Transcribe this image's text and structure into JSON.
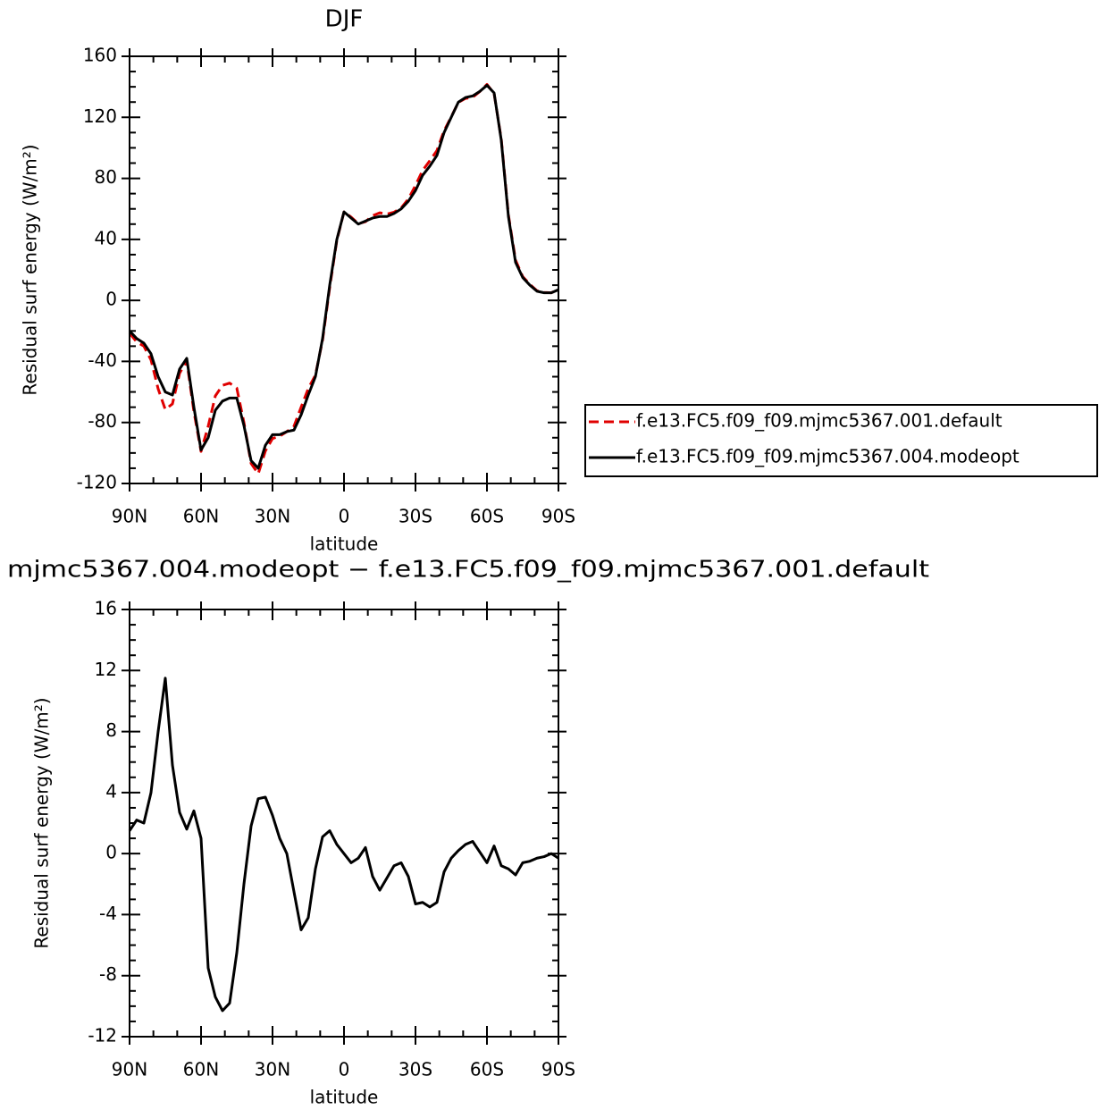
{
  "chart_data": [
    {
      "type": "line",
      "title": "DJF",
      "xlabel": "latitude",
      "ylabel": "Residual surf energy (W/m²)",
      "x": [
        90,
        87,
        84,
        81,
        78,
        75,
        72,
        69,
        66,
        63,
        60,
        57,
        54,
        51,
        48,
        45,
        42,
        39,
        36,
        33,
        30,
        27,
        24,
        21,
        18,
        15,
        12,
        9,
        6,
        3,
        0,
        -3,
        -6,
        -9,
        -12,
        -15,
        -18,
        -21,
        -24,
        -27,
        -30,
        -33,
        -36,
        -39,
        -42,
        -45,
        -48,
        -51,
        -54,
        -57,
        -60,
        -63,
        -66,
        -69,
        -72,
        -75,
        -78,
        -81,
        -84,
        -87,
        -90
      ],
      "series": [
        {
          "name": "f.e13.FC5.f09_f09.mjmc5367.001.default",
          "color": "#e00000",
          "line_style": "dashed",
          "values": [
            -21.5,
            -27.2,
            -30,
            -39,
            -58,
            -71.5,
            -67.8,
            -47.7,
            -39.6,
            -72.8,
            -99,
            -82.5,
            -62.6,
            -55.7,
            -54.2,
            -57.5,
            -80,
            -106.8,
            -113.6,
            -98.7,
            -90.5,
            -89,
            -86,
            -82.5,
            -70,
            -57.8,
            -49,
            -26.1,
            8.5,
            39.4,
            58,
            54.6,
            50.3,
            51.6,
            55.5,
            57.4,
            56.6,
            57.8,
            60.6,
            66.5,
            75.3,
            85.2,
            91.5,
            98.2,
            111.2,
            120.3,
            129.8,
            132.4,
            133.2,
            136.9,
            141.6,
            135.5,
            105.8,
            56,
            26.4,
            15.6,
            10.5,
            6.3,
            5.2,
            5,
            7.3
          ]
        },
        {
          "name": "f.e13.FC5.f09_f09.mjmc5367.004.modeopt",
          "color": "#000000",
          "line_style": "solid",
          "values": [
            -20,
            -25,
            -28,
            -35,
            -50,
            -60,
            -62,
            -45,
            -38,
            -70,
            -98,
            -90,
            -72,
            -66,
            -64,
            -64,
            -82,
            -105,
            -110,
            -95,
            -88,
            -88,
            -86,
            -85,
            -75,
            -62,
            -50,
            -25,
            10,
            40,
            58,
            54,
            50,
            52,
            54,
            55,
            55,
            57,
            60,
            65,
            72,
            82,
            88,
            95,
            110,
            120,
            130,
            133,
            134,
            137,
            141,
            136,
            105,
            55,
            25,
            15,
            10,
            6,
            5,
            5,
            7
          ]
        }
      ],
      "xlim": [
        90,
        -90
      ],
      "xticks": [
        {
          "value": 90,
          "label": "90N"
        },
        {
          "value": 60,
          "label": "60N"
        },
        {
          "value": 30,
          "label": "30N"
        },
        0,
        {
          "value": -30,
          "label": "30S"
        },
        {
          "value": -60,
          "label": "60S"
        },
        {
          "value": -90,
          "label": "90S"
        }
      ],
      "ylim": [
        -120,
        160
      ],
      "yticks": [
        -120,
        -80,
        -40,
        0,
        40,
        80,
        120,
        160
      ],
      "legend": "right"
    },
    {
      "type": "line",
      "title": "mjmc5367.004.modeopt − f.e13.FC5.f09_f09.mjmc5367.001.default",
      "xlabel": "latitude",
      "ylabel": "Residual surf energy (W/m²)",
      "x": [
        90,
        87,
        84,
        81,
        78,
        75,
        72,
        69,
        66,
        63,
        60,
        57,
        54,
        51,
        48,
        45,
        42,
        39,
        36,
        33,
        30,
        27,
        24,
        21,
        18,
        15,
        12,
        9,
        6,
        3,
        0,
        -3,
        -6,
        -9,
        -12,
        -15,
        -18,
        -21,
        -24,
        -27,
        -30,
        -33,
        -36,
        -39,
        -42,
        -45,
        -48,
        -51,
        -54,
        -57,
        -60,
        -63,
        -66,
        -69,
        -72,
        -75,
        -78,
        -81,
        -84,
        -87,
        -90
      ],
      "color": "#000000",
      "values": [
        1.5,
        2.2,
        2,
        4,
        8,
        11.5,
        5.8,
        2.7,
        1.6,
        2.8,
        1,
        -7.5,
        -9.4,
        -10.3,
        -9.8,
        -6.5,
        -2,
        1.8,
        3.6,
        3.7,
        2.5,
        1,
        0,
        -2.5,
        -5,
        -4.2,
        -1,
        1.1,
        1.5,
        0.6,
        0,
        -0.6,
        -0.3,
        0.4,
        -1.5,
        -2.4,
        -1.6,
        -0.8,
        -0.6,
        -1.5,
        -3.3,
        -3.2,
        -3.5,
        -3.2,
        -1.2,
        -0.3,
        0.2,
        0.6,
        0.8,
        0.1,
        -0.6,
        0.5,
        -0.8,
        -1,
        -1.4,
        -0.6,
        -0.5,
        -0.3,
        -0.2,
        0,
        -0.3
      ],
      "xlim": [
        90,
        -90
      ],
      "xticks": [
        {
          "value": 90,
          "label": "90N"
        },
        {
          "value": 60,
          "label": "60N"
        },
        {
          "value": 30,
          "label": "30N"
        },
        0,
        {
          "value": -30,
          "label": "30S"
        },
        {
          "value": -60,
          "label": "60S"
        },
        {
          "value": -90,
          "label": "90S"
        }
      ],
      "ylim": [
        -12,
        16
      ],
      "yticks": [
        -12,
        -8,
        -4,
        0,
        4,
        8,
        12,
        16
      ]
    }
  ]
}
